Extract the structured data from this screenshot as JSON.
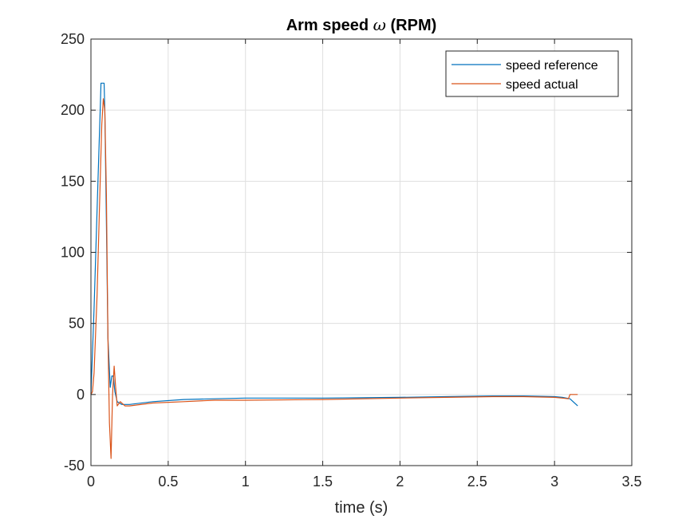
{
  "chart_data": {
    "type": "line",
    "title": "Arm speed",
    "title_symbol": "ω",
    "title_unit": "(RPM)",
    "xlabel": "time (s)",
    "ylabel": "",
    "xlim": [
      0,
      3.5
    ],
    "ylim": [
      -50,
      250
    ],
    "xticks": [
      0,
      0.5,
      1,
      1.5,
      2,
      2.5,
      3,
      3.5
    ],
    "xtick_labels": [
      "0",
      "0.5",
      "1",
      "1.5",
      "2",
      "2.5",
      "3",
      "3.5"
    ],
    "yticks": [
      -50,
      0,
      50,
      100,
      150,
      200,
      250
    ],
    "ytick_labels": [
      "-50",
      "0",
      "50",
      "100",
      "150",
      "200",
      "250"
    ],
    "grid": true,
    "legend_position": "top-right",
    "series": [
      {
        "name": "speed reference",
        "color": "#0072BD",
        "x": [
          0,
          0.02,
          0.04,
          0.06,
          0.065,
          0.085,
          0.09,
          0.1,
          0.11,
          0.125,
          0.135,
          0.145,
          0.155,
          0.17,
          0.2,
          0.25,
          0.4,
          0.6,
          0.8,
          1.0,
          1.5,
          2.0,
          2.3,
          2.6,
          2.8,
          3.0,
          3.05,
          3.1,
          3.15
        ],
        "y": [
          0,
          60,
          130,
          200,
          219,
          219,
          200,
          120,
          40,
          5,
          13,
          13,
          2,
          -5,
          -7,
          -7,
          -5,
          -3.5,
          -3,
          -2.5,
          -2.5,
          -2,
          -1.5,
          -1,
          -1,
          -1.5,
          -2,
          -3,
          -8
        ]
      },
      {
        "name": "speed actual",
        "color": "#D95319",
        "x": [
          0,
          0.01,
          0.02,
          0.04,
          0.06,
          0.07,
          0.08,
          0.09,
          0.1,
          0.11,
          0.12,
          0.13,
          0.14,
          0.15,
          0.16,
          0.17,
          0.19,
          0.22,
          0.25,
          0.4,
          0.6,
          0.8,
          1.0,
          1.5,
          2.0,
          2.3,
          2.6,
          2.8,
          3.0,
          3.05,
          3.09,
          3.1,
          3.15
        ],
        "y": [
          0,
          2,
          15,
          70,
          150,
          190,
          208,
          200,
          140,
          40,
          -20,
          -45,
          0,
          20,
          5,
          -8,
          -5,
          -8,
          -8,
          -6,
          -5,
          -4,
          -4,
          -3.5,
          -2.5,
          -2,
          -1.5,
          -1.5,
          -2,
          -2.5,
          -3,
          0,
          0
        ]
      }
    ]
  }
}
